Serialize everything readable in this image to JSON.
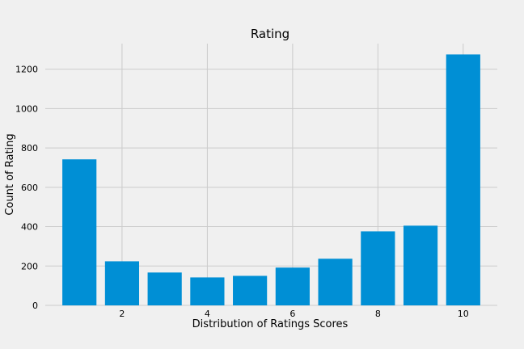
{
  "chart_data": {
    "type": "bar",
    "title": "Rating",
    "xlabel": "Distribution of Ratings Scores",
    "ylabel": "Count of Rating",
    "x": [
      1,
      2,
      3,
      4,
      5,
      6,
      7,
      8,
      9,
      10
    ],
    "values": [
      742,
      224,
      167,
      142,
      150,
      192,
      237,
      376,
      405,
      1275
    ],
    "xticks": [
      2,
      4,
      6,
      8,
      10
    ],
    "yticks": [
      0,
      200,
      400,
      600,
      800,
      1000,
      1200
    ],
    "xlim": [
      0.2,
      10.8
    ],
    "ylim": [
      0,
      1330
    ],
    "grid": true,
    "bar_color": "#008fd5",
    "background": "#f0f0f0",
    "grid_color": "#cbcbcb"
  }
}
